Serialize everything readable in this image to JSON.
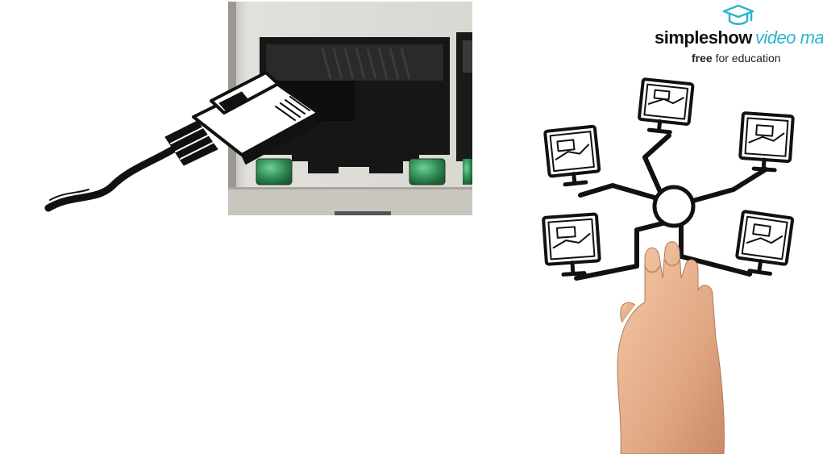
{
  "logo": {
    "brand": "simpleshow",
    "product": "video maker",
    "tagline_bold": "free",
    "tagline_rest": " for education"
  },
  "scene": {
    "background": "#ffffff",
    "port_housing_color": "#d7d5cf",
    "led_color": "#2f8a52",
    "accent_color": "#2bb5cf"
  }
}
